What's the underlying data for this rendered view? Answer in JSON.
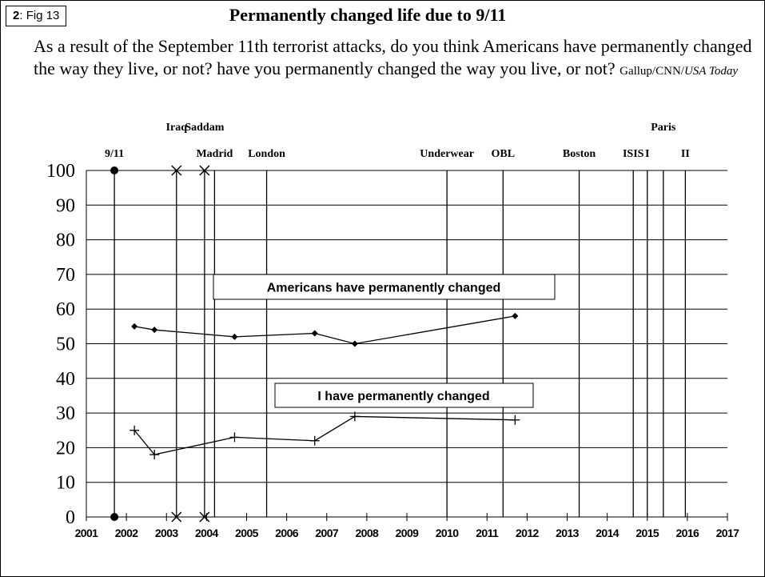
{
  "slide": {
    "number": "2",
    "label": "Fig 13"
  },
  "header": {
    "title": "Permanently changed life due to 9/11",
    "question": "As a result of the September 11th terrorist attacks, do you think Americans have permanently changed the way they live, or not? have you permanently changed the way you live, or not?",
    "source_plain": "Gallup/CNN/",
    "source_italic": "USA Today"
  },
  "chart_data": {
    "type": "line",
    "title": "Permanently changed life due to 9/11",
    "xlabel": "",
    "ylabel": "",
    "xlim": [
      2001,
      2017
    ],
    "ylim": [
      0,
      100
    ],
    "x_ticks": [
      "2001",
      "2002",
      "2003",
      "2004",
      "2005",
      "2006",
      "2007",
      "2008",
      "2009",
      "2010",
      "2011",
      "2012",
      "2013",
      "2014",
      "2015",
      "2016",
      "2017"
    ],
    "y_ticks": [
      "0",
      "10",
      "20",
      "30",
      "40",
      "50",
      "60",
      "70",
      "80",
      "90",
      "100"
    ],
    "grid": true,
    "series": [
      {
        "name": "Americans have permanently changed",
        "marker": "diamond",
        "x": [
          2002.2,
          2002.7,
          2004.7,
          2006.7,
          2007.7,
          2011.7
        ],
        "y": [
          55,
          54,
          52,
          53,
          50,
          58
        ]
      },
      {
        "name": "I have permanently changed",
        "marker": "plus",
        "x": [
          2002.2,
          2002.7,
          2004.7,
          2006.7,
          2007.7,
          2011.7
        ],
        "y": [
          25,
          18,
          23,
          22,
          29,
          28
        ]
      }
    ],
    "events": [
      {
        "label": "9/11",
        "x": 2001.7,
        "row": 2,
        "marker": "dot"
      },
      {
        "label": "Iraq",
        "x": 2003.25,
        "row": 1,
        "marker": "x"
      },
      {
        "label": "Saddam",
        "x": 2003.95,
        "row": 1,
        "marker": "x"
      },
      {
        "label": "Madrid",
        "x": 2004.2,
        "row": 2,
        "marker": "none"
      },
      {
        "label": "London",
        "x": 2005.5,
        "row": 2,
        "marker": "none"
      },
      {
        "label": "Underwear",
        "x": 2010.0,
        "row": 2,
        "marker": "none"
      },
      {
        "label": "OBL",
        "x": 2011.4,
        "row": 2,
        "marker": "none"
      },
      {
        "label": "Boston",
        "x": 2013.3,
        "row": 2,
        "marker": "none"
      },
      {
        "label": "ISIS",
        "x": 2014.65,
        "row": 2,
        "marker": "none"
      },
      {
        "label": "I",
        "x": 2015.0,
        "row": 2,
        "marker": "none"
      },
      {
        "label": "Paris",
        "x": 2015.4,
        "row": 1,
        "marker": "none"
      },
      {
        "label": "II",
        "x": 2015.95,
        "row": 2,
        "marker": "none"
      }
    ]
  },
  "colors": {
    "line": "#000000",
    "background": "#ffffff"
  }
}
